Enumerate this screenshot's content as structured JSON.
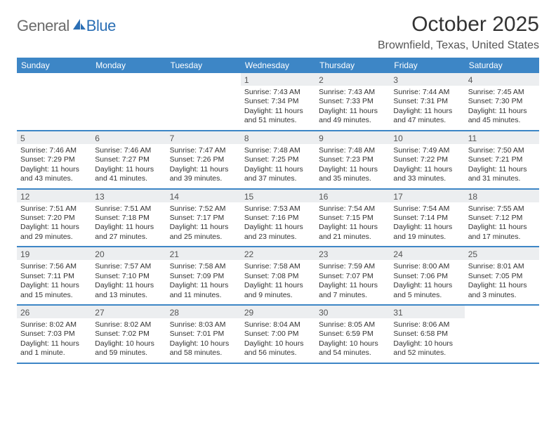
{
  "logo": {
    "text1": "General",
    "text2": "Blue"
  },
  "title": "October 2025",
  "location": "Brownfield, Texas, United States",
  "weekdays": [
    "Sunday",
    "Monday",
    "Tuesday",
    "Wednesday",
    "Thursday",
    "Friday",
    "Saturday"
  ],
  "colors": {
    "header_blue": "#3d86c6",
    "daynum_bg": "#eceef0",
    "logo_gray": "#6b6b6b",
    "logo_blue": "#2b6fb5"
  },
  "weeks": [
    [
      {
        "n": "",
        "sr": "",
        "ss": "",
        "dl": ""
      },
      {
        "n": "",
        "sr": "",
        "ss": "",
        "dl": ""
      },
      {
        "n": "",
        "sr": "",
        "ss": "",
        "dl": ""
      },
      {
        "n": "1",
        "sr": "Sunrise: 7:43 AM",
        "ss": "Sunset: 7:34 PM",
        "dl": "Daylight: 11 hours and 51 minutes."
      },
      {
        "n": "2",
        "sr": "Sunrise: 7:43 AM",
        "ss": "Sunset: 7:33 PM",
        "dl": "Daylight: 11 hours and 49 minutes."
      },
      {
        "n": "3",
        "sr": "Sunrise: 7:44 AM",
        "ss": "Sunset: 7:31 PM",
        "dl": "Daylight: 11 hours and 47 minutes."
      },
      {
        "n": "4",
        "sr": "Sunrise: 7:45 AM",
        "ss": "Sunset: 7:30 PM",
        "dl": "Daylight: 11 hours and 45 minutes."
      }
    ],
    [
      {
        "n": "5",
        "sr": "Sunrise: 7:46 AM",
        "ss": "Sunset: 7:29 PM",
        "dl": "Daylight: 11 hours and 43 minutes."
      },
      {
        "n": "6",
        "sr": "Sunrise: 7:46 AM",
        "ss": "Sunset: 7:27 PM",
        "dl": "Daylight: 11 hours and 41 minutes."
      },
      {
        "n": "7",
        "sr": "Sunrise: 7:47 AM",
        "ss": "Sunset: 7:26 PM",
        "dl": "Daylight: 11 hours and 39 minutes."
      },
      {
        "n": "8",
        "sr": "Sunrise: 7:48 AM",
        "ss": "Sunset: 7:25 PM",
        "dl": "Daylight: 11 hours and 37 minutes."
      },
      {
        "n": "9",
        "sr": "Sunrise: 7:48 AM",
        "ss": "Sunset: 7:23 PM",
        "dl": "Daylight: 11 hours and 35 minutes."
      },
      {
        "n": "10",
        "sr": "Sunrise: 7:49 AM",
        "ss": "Sunset: 7:22 PM",
        "dl": "Daylight: 11 hours and 33 minutes."
      },
      {
        "n": "11",
        "sr": "Sunrise: 7:50 AM",
        "ss": "Sunset: 7:21 PM",
        "dl": "Daylight: 11 hours and 31 minutes."
      }
    ],
    [
      {
        "n": "12",
        "sr": "Sunrise: 7:51 AM",
        "ss": "Sunset: 7:20 PM",
        "dl": "Daylight: 11 hours and 29 minutes."
      },
      {
        "n": "13",
        "sr": "Sunrise: 7:51 AM",
        "ss": "Sunset: 7:18 PM",
        "dl": "Daylight: 11 hours and 27 minutes."
      },
      {
        "n": "14",
        "sr": "Sunrise: 7:52 AM",
        "ss": "Sunset: 7:17 PM",
        "dl": "Daylight: 11 hours and 25 minutes."
      },
      {
        "n": "15",
        "sr": "Sunrise: 7:53 AM",
        "ss": "Sunset: 7:16 PM",
        "dl": "Daylight: 11 hours and 23 minutes."
      },
      {
        "n": "16",
        "sr": "Sunrise: 7:54 AM",
        "ss": "Sunset: 7:15 PM",
        "dl": "Daylight: 11 hours and 21 minutes."
      },
      {
        "n": "17",
        "sr": "Sunrise: 7:54 AM",
        "ss": "Sunset: 7:14 PM",
        "dl": "Daylight: 11 hours and 19 minutes."
      },
      {
        "n": "18",
        "sr": "Sunrise: 7:55 AM",
        "ss": "Sunset: 7:12 PM",
        "dl": "Daylight: 11 hours and 17 minutes."
      }
    ],
    [
      {
        "n": "19",
        "sr": "Sunrise: 7:56 AM",
        "ss": "Sunset: 7:11 PM",
        "dl": "Daylight: 11 hours and 15 minutes."
      },
      {
        "n": "20",
        "sr": "Sunrise: 7:57 AM",
        "ss": "Sunset: 7:10 PM",
        "dl": "Daylight: 11 hours and 13 minutes."
      },
      {
        "n": "21",
        "sr": "Sunrise: 7:58 AM",
        "ss": "Sunset: 7:09 PM",
        "dl": "Daylight: 11 hours and 11 minutes."
      },
      {
        "n": "22",
        "sr": "Sunrise: 7:58 AM",
        "ss": "Sunset: 7:08 PM",
        "dl": "Daylight: 11 hours and 9 minutes."
      },
      {
        "n": "23",
        "sr": "Sunrise: 7:59 AM",
        "ss": "Sunset: 7:07 PM",
        "dl": "Daylight: 11 hours and 7 minutes."
      },
      {
        "n": "24",
        "sr": "Sunrise: 8:00 AM",
        "ss": "Sunset: 7:06 PM",
        "dl": "Daylight: 11 hours and 5 minutes."
      },
      {
        "n": "25",
        "sr": "Sunrise: 8:01 AM",
        "ss": "Sunset: 7:05 PM",
        "dl": "Daylight: 11 hours and 3 minutes."
      }
    ],
    [
      {
        "n": "26",
        "sr": "Sunrise: 8:02 AM",
        "ss": "Sunset: 7:03 PM",
        "dl": "Daylight: 11 hours and 1 minute."
      },
      {
        "n": "27",
        "sr": "Sunrise: 8:02 AM",
        "ss": "Sunset: 7:02 PM",
        "dl": "Daylight: 10 hours and 59 minutes."
      },
      {
        "n": "28",
        "sr": "Sunrise: 8:03 AM",
        "ss": "Sunset: 7:01 PM",
        "dl": "Daylight: 10 hours and 58 minutes."
      },
      {
        "n": "29",
        "sr": "Sunrise: 8:04 AM",
        "ss": "Sunset: 7:00 PM",
        "dl": "Daylight: 10 hours and 56 minutes."
      },
      {
        "n": "30",
        "sr": "Sunrise: 8:05 AM",
        "ss": "Sunset: 6:59 PM",
        "dl": "Daylight: 10 hours and 54 minutes."
      },
      {
        "n": "31",
        "sr": "Sunrise: 8:06 AM",
        "ss": "Sunset: 6:58 PM",
        "dl": "Daylight: 10 hours and 52 minutes."
      },
      {
        "n": "",
        "sr": "",
        "ss": "",
        "dl": ""
      }
    ]
  ]
}
